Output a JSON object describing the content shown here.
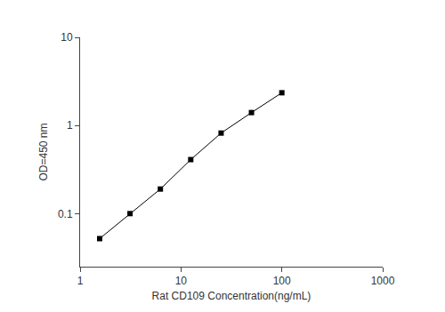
{
  "chart_data": {
    "type": "line",
    "x_label": "Rat CD109 Concentration(ng/mL)",
    "y_label": "OD=450 nm",
    "x": [
      1.5625,
      3.125,
      6.25,
      12.5,
      25,
      50,
      100
    ],
    "values": [
      0.052,
      0.1,
      0.19,
      0.41,
      0.82,
      1.4,
      2.35
    ],
    "color": "#000000",
    "marker": "square",
    "line_style": "solid",
    "log": true,
    "grid": false,
    "xlim": [
      1,
      1000
    ],
    "xticks": [
      1,
      10,
      100,
      1000
    ],
    "ylim": [
      0.025,
      10
    ],
    "yticks": [
      0.1,
      1,
      10
    ]
  }
}
